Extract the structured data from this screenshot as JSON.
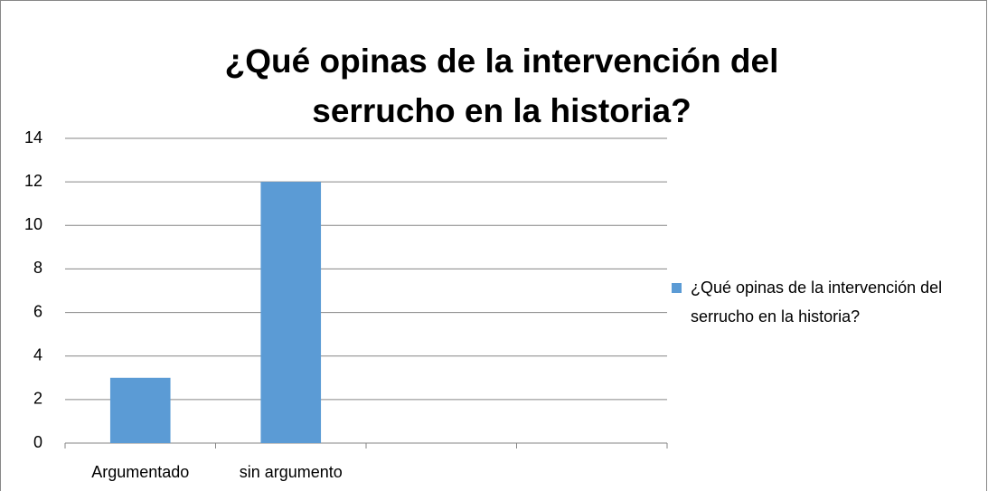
{
  "chart_data": {
    "type": "bar",
    "title": "¿Qué opinas de la intervención del serrucho en la historia?",
    "categories": [
      "Argumentado",
      "sin argumento",
      null,
      null
    ],
    "series": [
      {
        "name": "¿Qué opinas de la intervención del serrucho en la historia?",
        "color": "#5b9bd5",
        "values": [
          3,
          12,
          null,
          null
        ]
      }
    ],
    "ylim": [
      0,
      14
    ],
    "yticks": [
      0,
      2,
      4,
      6,
      8,
      10,
      12,
      14
    ],
    "grid": true,
    "legend": "right"
  }
}
